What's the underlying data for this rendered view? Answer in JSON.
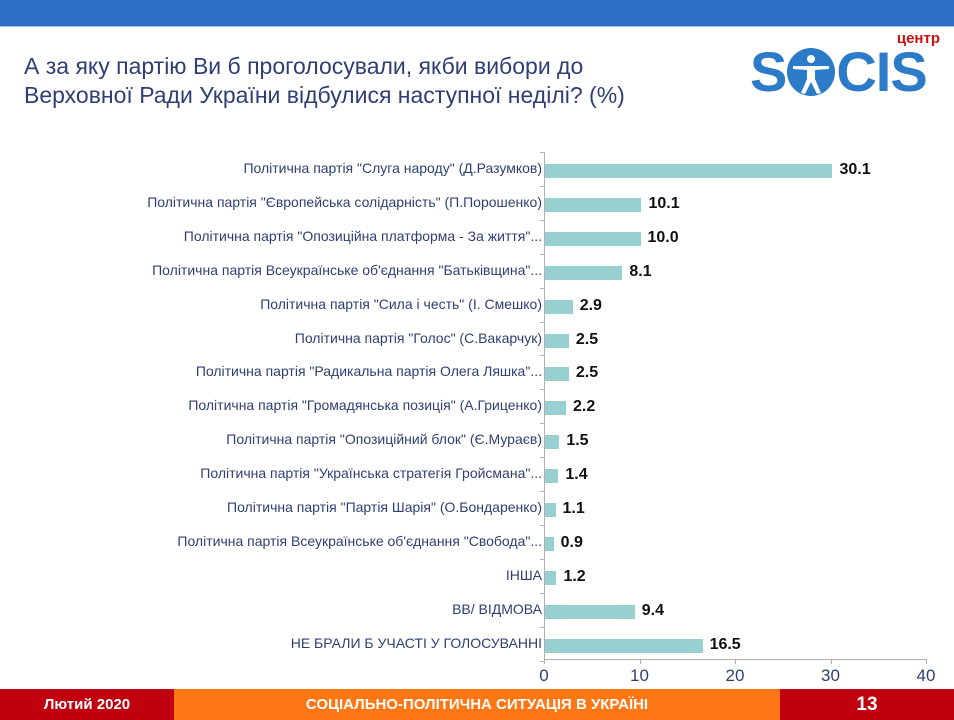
{
  "header": {
    "title_line1": "А за яку партію Ви б проголосували, якби вибори до",
    "title_line2": "Верховної Ради України відбулися наступної неділі? (%)"
  },
  "logo": {
    "centr": "центр",
    "letters": [
      "S",
      "O",
      "CIS"
    ]
  },
  "footer": {
    "date": "Лютий 2020",
    "subtitle": "СОЦІАЛЬНО-ПОЛІТИЧНА СИТУАЦІЯ В УКРАЇНІ",
    "page": "13"
  },
  "colors": {
    "bar": "#98d0d2",
    "topbar": "#2a6fc4",
    "footer_red": "#c0000f",
    "footer_orange": "#ff7714",
    "title": "#2f3f73",
    "logo_blue": "#2b7bc9"
  },
  "chart_data": {
    "type": "bar",
    "orientation": "horizontal",
    "title": "А за яку партію Ви б проголосували, якби вибори до Верховної Ради України відбулися наступної неділі? (%)",
    "categories": [
      "Політична партія \"Слуга народу\" (Д.Разумков)",
      "Політична партія \"Європейська солідарність\" (П.Порошенко)",
      "Політична партія \"Опозиційна платформа - За життя\"...",
      "Політична партія Всеукраїнське об'єднання \"Батьківщина\"...",
      "Політична партія \"Сила і честь\" (І. Смешко)",
      "Політична партія \"Голос\" (С.Вакарчук)",
      "Політична партія \"Радикальна партія Олега Ляшка\"...",
      "Політична партія \"Громадянська позиція\" (А.Гриценко)",
      "Політична партія \"Опозиційний блок\" (Є.Мураєв)",
      "Політична партія \"Українська стратегія Гройсмана\"...",
      "Політична партія \"Партія Шарія\" (О.Бондаренко)",
      "Політична партія Всеукраїнське об'єднання \"Свобода\"...",
      "ІНША",
      "ВВ/ ВІДМОВА",
      "НЕ БРАЛИ Б УЧАСТІ У ГОЛОСУВАННІ"
    ],
    "values": [
      30.1,
      10.1,
      10.0,
      8.1,
      2.9,
      2.5,
      2.5,
      2.2,
      1.5,
      1.4,
      1.1,
      0.9,
      1.2,
      9.4,
      16.5
    ],
    "value_labels": [
      "30.1",
      "10.1",
      "10.0",
      "8.1",
      "2.9",
      "2.5",
      "2.5",
      "2.2",
      "1.5",
      "1.4",
      "1.1",
      "0.9",
      "1.2",
      "9.4",
      "16.5"
    ],
    "xlabel": "",
    "ylabel": "",
    "xlim": [
      0,
      40
    ],
    "xticks": [
      "0",
      "10",
      "20",
      "30",
      "40"
    ],
    "grid": false,
    "legend": null
  }
}
